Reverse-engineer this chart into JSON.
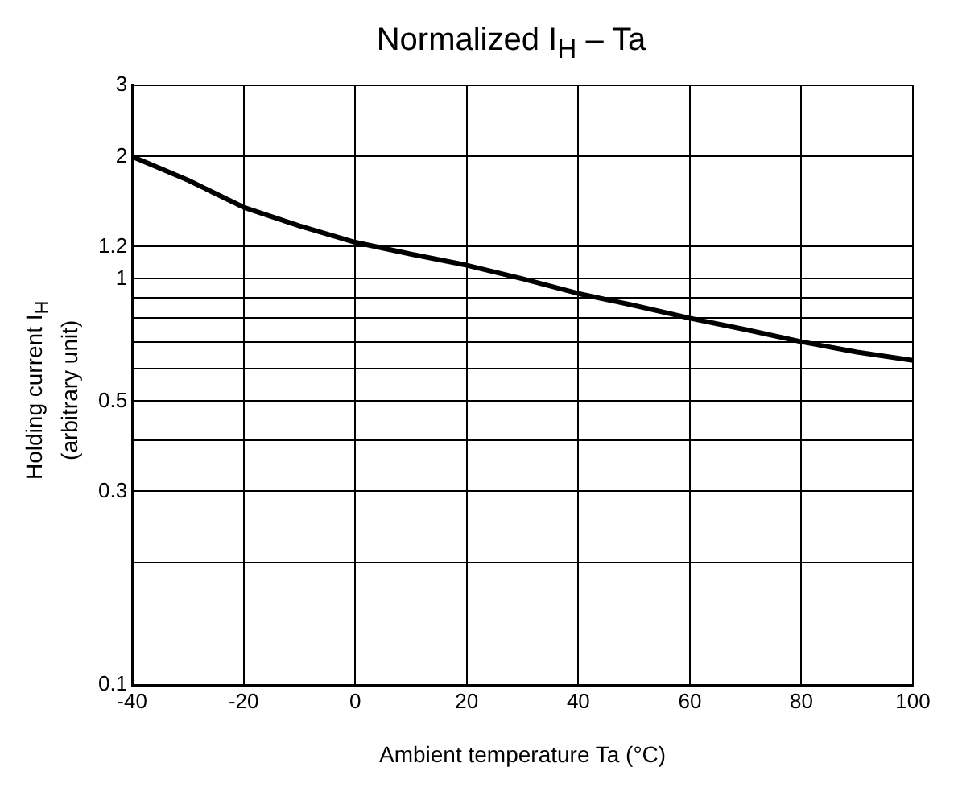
{
  "chart_data": {
    "type": "line",
    "title": "Normalized I$_{H}$ – Ta",
    "xlabel": "Ambient temperature Ta (°C)",
    "ylabel": "Holding current I$_{H}$\n(arbitrary unit)",
    "x": [
      -40,
      -30,
      -20,
      -10,
      0,
      10,
      20,
      30,
      40,
      50,
      60,
      70,
      80,
      90,
      100
    ],
    "series": [
      {
        "color": "#000000",
        "values": [
          2.0,
          1.75,
          1.5,
          1.35,
          1.23,
          1.15,
          1.08,
          1.0,
          0.92,
          0.86,
          0.8,
          0.75,
          0.7,
          0.66,
          0.63
        ]
      }
    ],
    "xlim": [
      -40,
      100
    ],
    "xticks": [
      -40,
      -20,
      0,
      20,
      40,
      60,
      80,
      100
    ],
    "ylim": [
      0.1,
      3
    ],
    "yticks": [
      0.1,
      {
        "value": 0.2,
        "label": null
      },
      0.3,
      {
        "value": 0.4,
        "label": null
      },
      0.5,
      {
        "value": 0.6,
        "label": null
      },
      {
        "value": 0.7,
        "label": null
      },
      {
        "value": 0.8,
        "label": null
      },
      {
        "value": 0.9,
        "label": null
      },
      1,
      1.2,
      2,
      3
    ],
    "log": "y",
    "grid": true,
    "marker": "none",
    "line_style": "solid",
    "legend": false
  }
}
